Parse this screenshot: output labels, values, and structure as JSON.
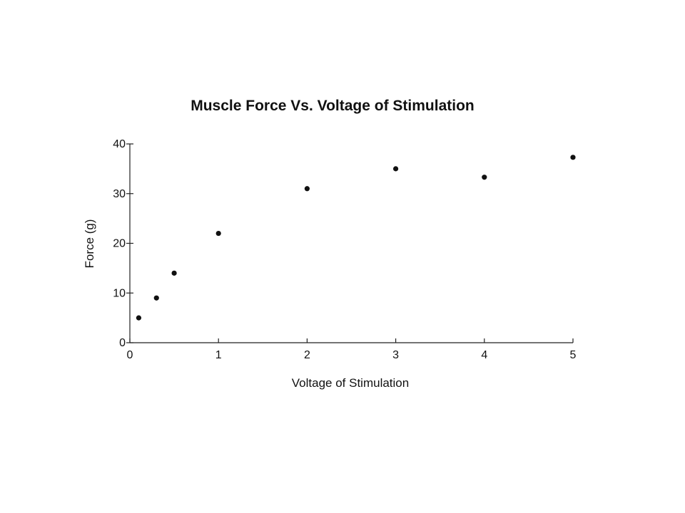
{
  "chart_data": {
    "type": "scatter",
    "title": "Muscle Force Vs. Voltage of Stimulation",
    "xlabel": "Voltage of Stimulation",
    "ylabel": "Force (g)",
    "xlim": [
      0,
      5
    ],
    "ylim": [
      0,
      40
    ],
    "xticks": [
      "0",
      "1",
      "2",
      "3",
      "4",
      "5"
    ],
    "yticks": [
      "0",
      "10",
      "20",
      "30",
      "40"
    ],
    "grid": false,
    "legend": "none",
    "point_color": "#111111",
    "series": [
      {
        "x": [
          0.1,
          0.3,
          0.5,
          1.0,
          2.0,
          3.0,
          4.0,
          5.0
        ],
        "y": [
          5,
          9,
          14,
          22,
          31,
          35,
          33.3,
          37.3
        ]
      }
    ]
  }
}
